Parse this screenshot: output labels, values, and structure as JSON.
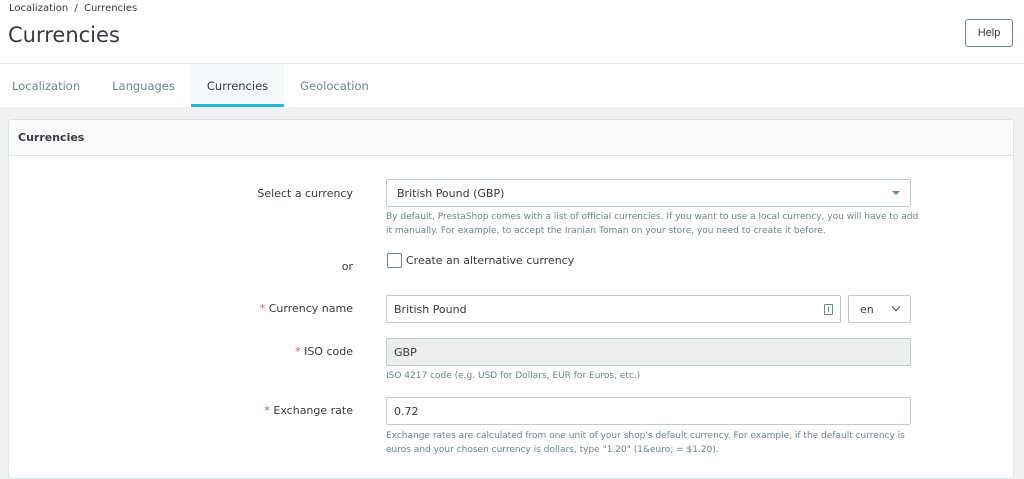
{
  "breadcrumb": {
    "items": [
      "Localization",
      "Currencies"
    ],
    "separator": "/"
  },
  "page_title": "Currencies",
  "help_label": "Help",
  "tabs": [
    {
      "label": "Localization"
    },
    {
      "label": "Languages"
    },
    {
      "label": "Currencies",
      "active": true
    },
    {
      "label": "Geolocation"
    }
  ],
  "card": {
    "title": "Currencies",
    "select_currency": {
      "label": "Select a currency",
      "value": "British Pound (GBP)",
      "help": "By default, PrestaShop comes with a list of official currencies. If you want to use a local currency, you will have to add it manually. For example, to accept the Iranian Toman on your store, you need to create it before."
    },
    "or_label": "or",
    "alternative": {
      "label": "Create an alternative currency",
      "checked": false
    },
    "currency_name": {
      "label": "Currency name",
      "value": "British Pound",
      "lang": "en"
    },
    "iso_code": {
      "label": "ISO code",
      "value": "GBP",
      "help": "ISO 4217 code (e.g. USD for Dollars, EUR for Euros, etc.)"
    },
    "exchange_rate": {
      "label": "Exchange rate",
      "value": "0.72",
      "help": "Exchange rates are calculated from one unit of your shop's default currency. For example, if the default currency is euros and your chosen currency is dollars, type \"1.20\" (1&euro; = $1.20)."
    },
    "required_marker": "*"
  },
  "colors": {
    "accent": "#25b9d7",
    "required": "#c05c67"
  }
}
